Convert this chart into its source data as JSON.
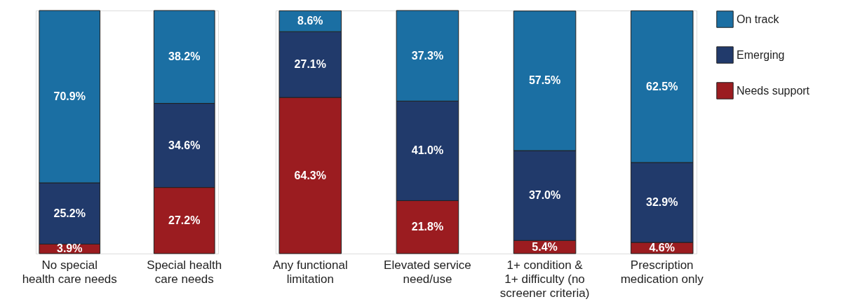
{
  "chart_data": [
    {
      "type": "bar",
      "stacked": true,
      "legend": "top right",
      "categories": [
        "No special\nhealth care needs",
        "Special health\ncare needs"
      ],
      "series": [
        {
          "name": "Needs support",
          "color": "#9b1c20",
          "values": [
            3.9,
            27.2
          ],
          "value_labels": [
            "3.9%",
            "27.2%"
          ]
        },
        {
          "name": "Emerging",
          "color": "#213a6b",
          "values": [
            25.2,
            34.6
          ],
          "value_labels": [
            "25.2%",
            "34.6%"
          ]
        },
        {
          "name": "On track",
          "color": "#1b6fa3",
          "values": [
            70.9,
            38.2
          ],
          "value_labels": [
            "70.9%",
            "38.2%"
          ]
        }
      ]
    },
    {
      "type": "bar",
      "stacked": true,
      "legend": "top right",
      "categories": [
        "Any functional\nlimitation",
        "Elevated service\nneed/use",
        "1+ condition &\n1+ difficulty (no\nscreener criteria)",
        "Prescription\nmedication only"
      ],
      "series": [
        {
          "name": "Needs support",
          "color": "#9b1c20",
          "values": [
            64.3,
            21.8,
            5.4,
            4.6
          ],
          "value_labels": [
            "64.3%",
            "21.8%",
            "5.4%",
            "4.6%"
          ]
        },
        {
          "name": "Emerging",
          "color": "#213a6b",
          "values": [
            27.1,
            41.0,
            37.0,
            32.9
          ],
          "value_labels": [
            "27.1%",
            "41.0%",
            "37.0%",
            "32.9%"
          ]
        },
        {
          "name": "On track",
          "color": "#1b6fa3",
          "values": [
            8.6,
            37.3,
            57.5,
            62.5
          ],
          "value_labels": [
            "8.6%",
            "37.3%",
            "57.5%",
            "62.5%"
          ]
        }
      ]
    }
  ]
}
